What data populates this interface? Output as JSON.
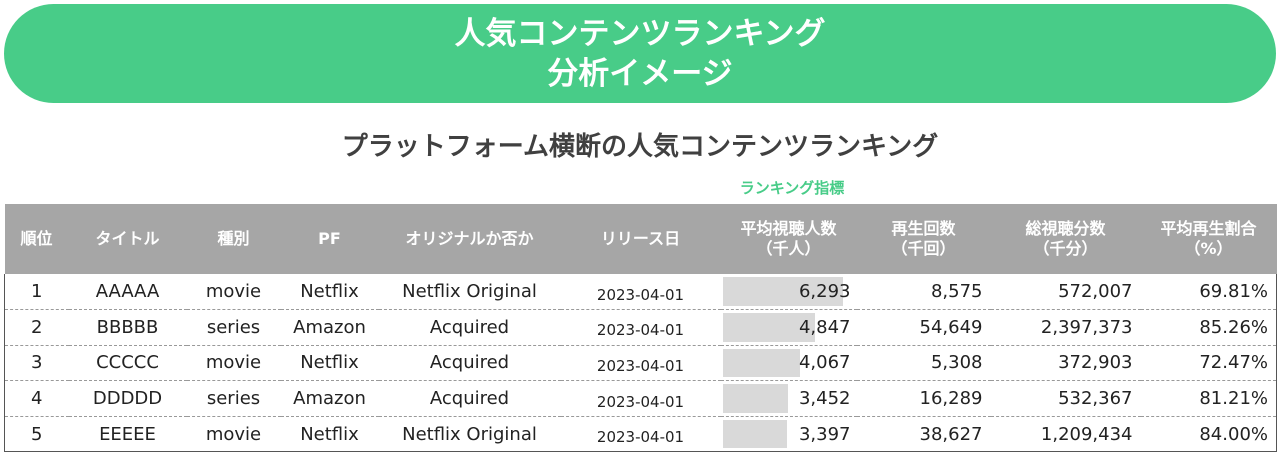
{
  "banner": {
    "line1": "人気コンテンツランキング",
    "line2": "分析イメージ"
  },
  "subtitle": "プラットフォーム横断の人気コンテンツランキング",
  "metric_label": "ランキング指標",
  "colors": {
    "accent": "#48CC88",
    "header_bg": "#A6A6A6",
    "bar": "#D9D9D9"
  },
  "headers": {
    "rank": "順位",
    "title": "タイトル",
    "type": "種別",
    "pf": "PF",
    "original": "オリジナルか否か",
    "release": "リリース日",
    "avg_viewers_l1": "平均視聴人数",
    "avg_viewers_l2": "（千人）",
    "plays_l1": "再生回数",
    "plays_l2": "（千回）",
    "total_minutes_l1": "総視聴分数",
    "total_minutes_l2": "（千分）",
    "avg_ratio_l1": "平均再生割合",
    "avg_ratio_l2": "（%）"
  },
  "rows": [
    {
      "rank": "1",
      "title": "AAAAA",
      "type": "movie",
      "pf": "Netflix",
      "original": "Netflix Original",
      "release": "2023-04-01",
      "avg_viewers": "6,293",
      "bar_fraction": 1.0,
      "plays": "8,575",
      "total_minutes": "572,007",
      "avg_ratio": "69.81%"
    },
    {
      "rank": "2",
      "title": "BBBBB",
      "type": "series",
      "pf": "Amazon",
      "original": "Acquired",
      "release": "2023-04-01",
      "avg_viewers": "4,847",
      "bar_fraction": 0.77,
      "plays": "54,649",
      "total_minutes": "2,397,373",
      "avg_ratio": "85.26%"
    },
    {
      "rank": "3",
      "title": "CCCCC",
      "type": "movie",
      "pf": "Netflix",
      "original": "Acquired",
      "release": "2023-04-01",
      "avg_viewers": "4,067",
      "bar_fraction": 0.646,
      "plays": "5,308",
      "total_minutes": "372,903",
      "avg_ratio": "72.47%"
    },
    {
      "rank": "4",
      "title": "DDDDD",
      "type": "series",
      "pf": "Amazon",
      "original": "Acquired",
      "release": "2023-04-01",
      "avg_viewers": "3,452",
      "bar_fraction": 0.549,
      "plays": "16,289",
      "total_minutes": "532,367",
      "avg_ratio": "81.21%"
    },
    {
      "rank": "5",
      "title": "EEEEE",
      "type": "movie",
      "pf": "Netflix",
      "original": "Netflix Original",
      "release": "2023-04-01",
      "avg_viewers": "3,397",
      "bar_fraction": 0.54,
      "plays": "38,627",
      "total_minutes": "1,209,434",
      "avg_ratio": "84.00%"
    }
  ]
}
